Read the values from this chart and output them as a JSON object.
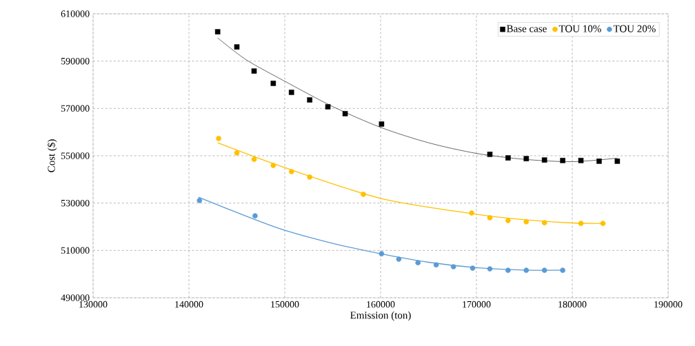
{
  "chart_data": {
    "type": "scatter",
    "xlabel": "Emission (ton)",
    "ylabel": "Cost ($)",
    "xlim": [
      130000,
      190000
    ],
    "ylim": [
      490000,
      610000
    ],
    "xticks": [
      130000,
      140000,
      150000,
      160000,
      170000,
      180000,
      190000
    ],
    "yticks": [
      490000,
      510000,
      530000,
      550000,
      570000,
      590000,
      610000
    ],
    "grid": true,
    "legend": "top right",
    "series": [
      {
        "name": "Base case",
        "color": "#000000",
        "marker": "square",
        "x": [
          143000,
          145000,
          146800,
          148800,
          150700,
          152600,
          154500,
          156300,
          160100,
          171400,
          173300,
          175200,
          177100,
          179000,
          180900,
          182800,
          184700
        ],
        "values": [
          602400,
          596000,
          585800,
          580600,
          576800,
          573600,
          570700,
          567800,
          563400,
          550600,
          549100,
          548800,
          548200,
          548000,
          548000,
          547700,
          547700
        ]
      },
      {
        "name": "TOU 10%",
        "color": "#ffc000",
        "marker": "circle",
        "x": [
          143100,
          145000,
          146800,
          148800,
          150700,
          152600,
          158200,
          169500,
          171400,
          173300,
          175200,
          177100,
          180900,
          183200
        ],
        "values": [
          557300,
          551200,
          548500,
          545900,
          543300,
          541000,
          533700,
          525800,
          523800,
          522600,
          522100,
          521700,
          521400,
          521400
        ]
      },
      {
        "name": "TOU 20%",
        "color": "#5b9bd5",
        "marker": "circle",
        "x": [
          141100,
          146900,
          160100,
          161900,
          163900,
          165800,
          167600,
          169600,
          171400,
          173300,
          175200,
          177100,
          179000
        ],
        "values": [
          531100,
          524600,
          508600,
          506300,
          504800,
          503900,
          503100,
          502500,
          502200,
          501600,
          501600,
          501600,
          501600
        ]
      },
      {
        "type": "line",
        "color": "#000000",
        "marker": "none",
        "x": [
          143000,
          146000,
          150000,
          155000,
          160000,
          165000,
          170000,
          175000,
          180000,
          184700
        ],
        "values": [
          599800,
          590500,
          581500,
          570800,
          562000,
          555500,
          551000,
          548500,
          547500,
          549000
        ]
      },
      {
        "type": "line",
        "color": "#ffc000",
        "marker": "none",
        "x": [
          143000,
          150000,
          160000,
          170000,
          175000,
          180000,
          183200
        ],
        "values": [
          555500,
          545000,
          532000,
          525300,
          523000,
          521600,
          521400
        ]
      },
      {
        "type": "line",
        "color": "#5b9bd5",
        "marker": "none",
        "x": [
          141000,
          146900,
          150000,
          155000,
          160000,
          165000,
          170000,
          175000,
          179000
        ],
        "values": [
          532500,
          523000,
          518500,
          513000,
          508600,
          505000,
          502700,
          501700,
          501700
        ]
      }
    ]
  }
}
